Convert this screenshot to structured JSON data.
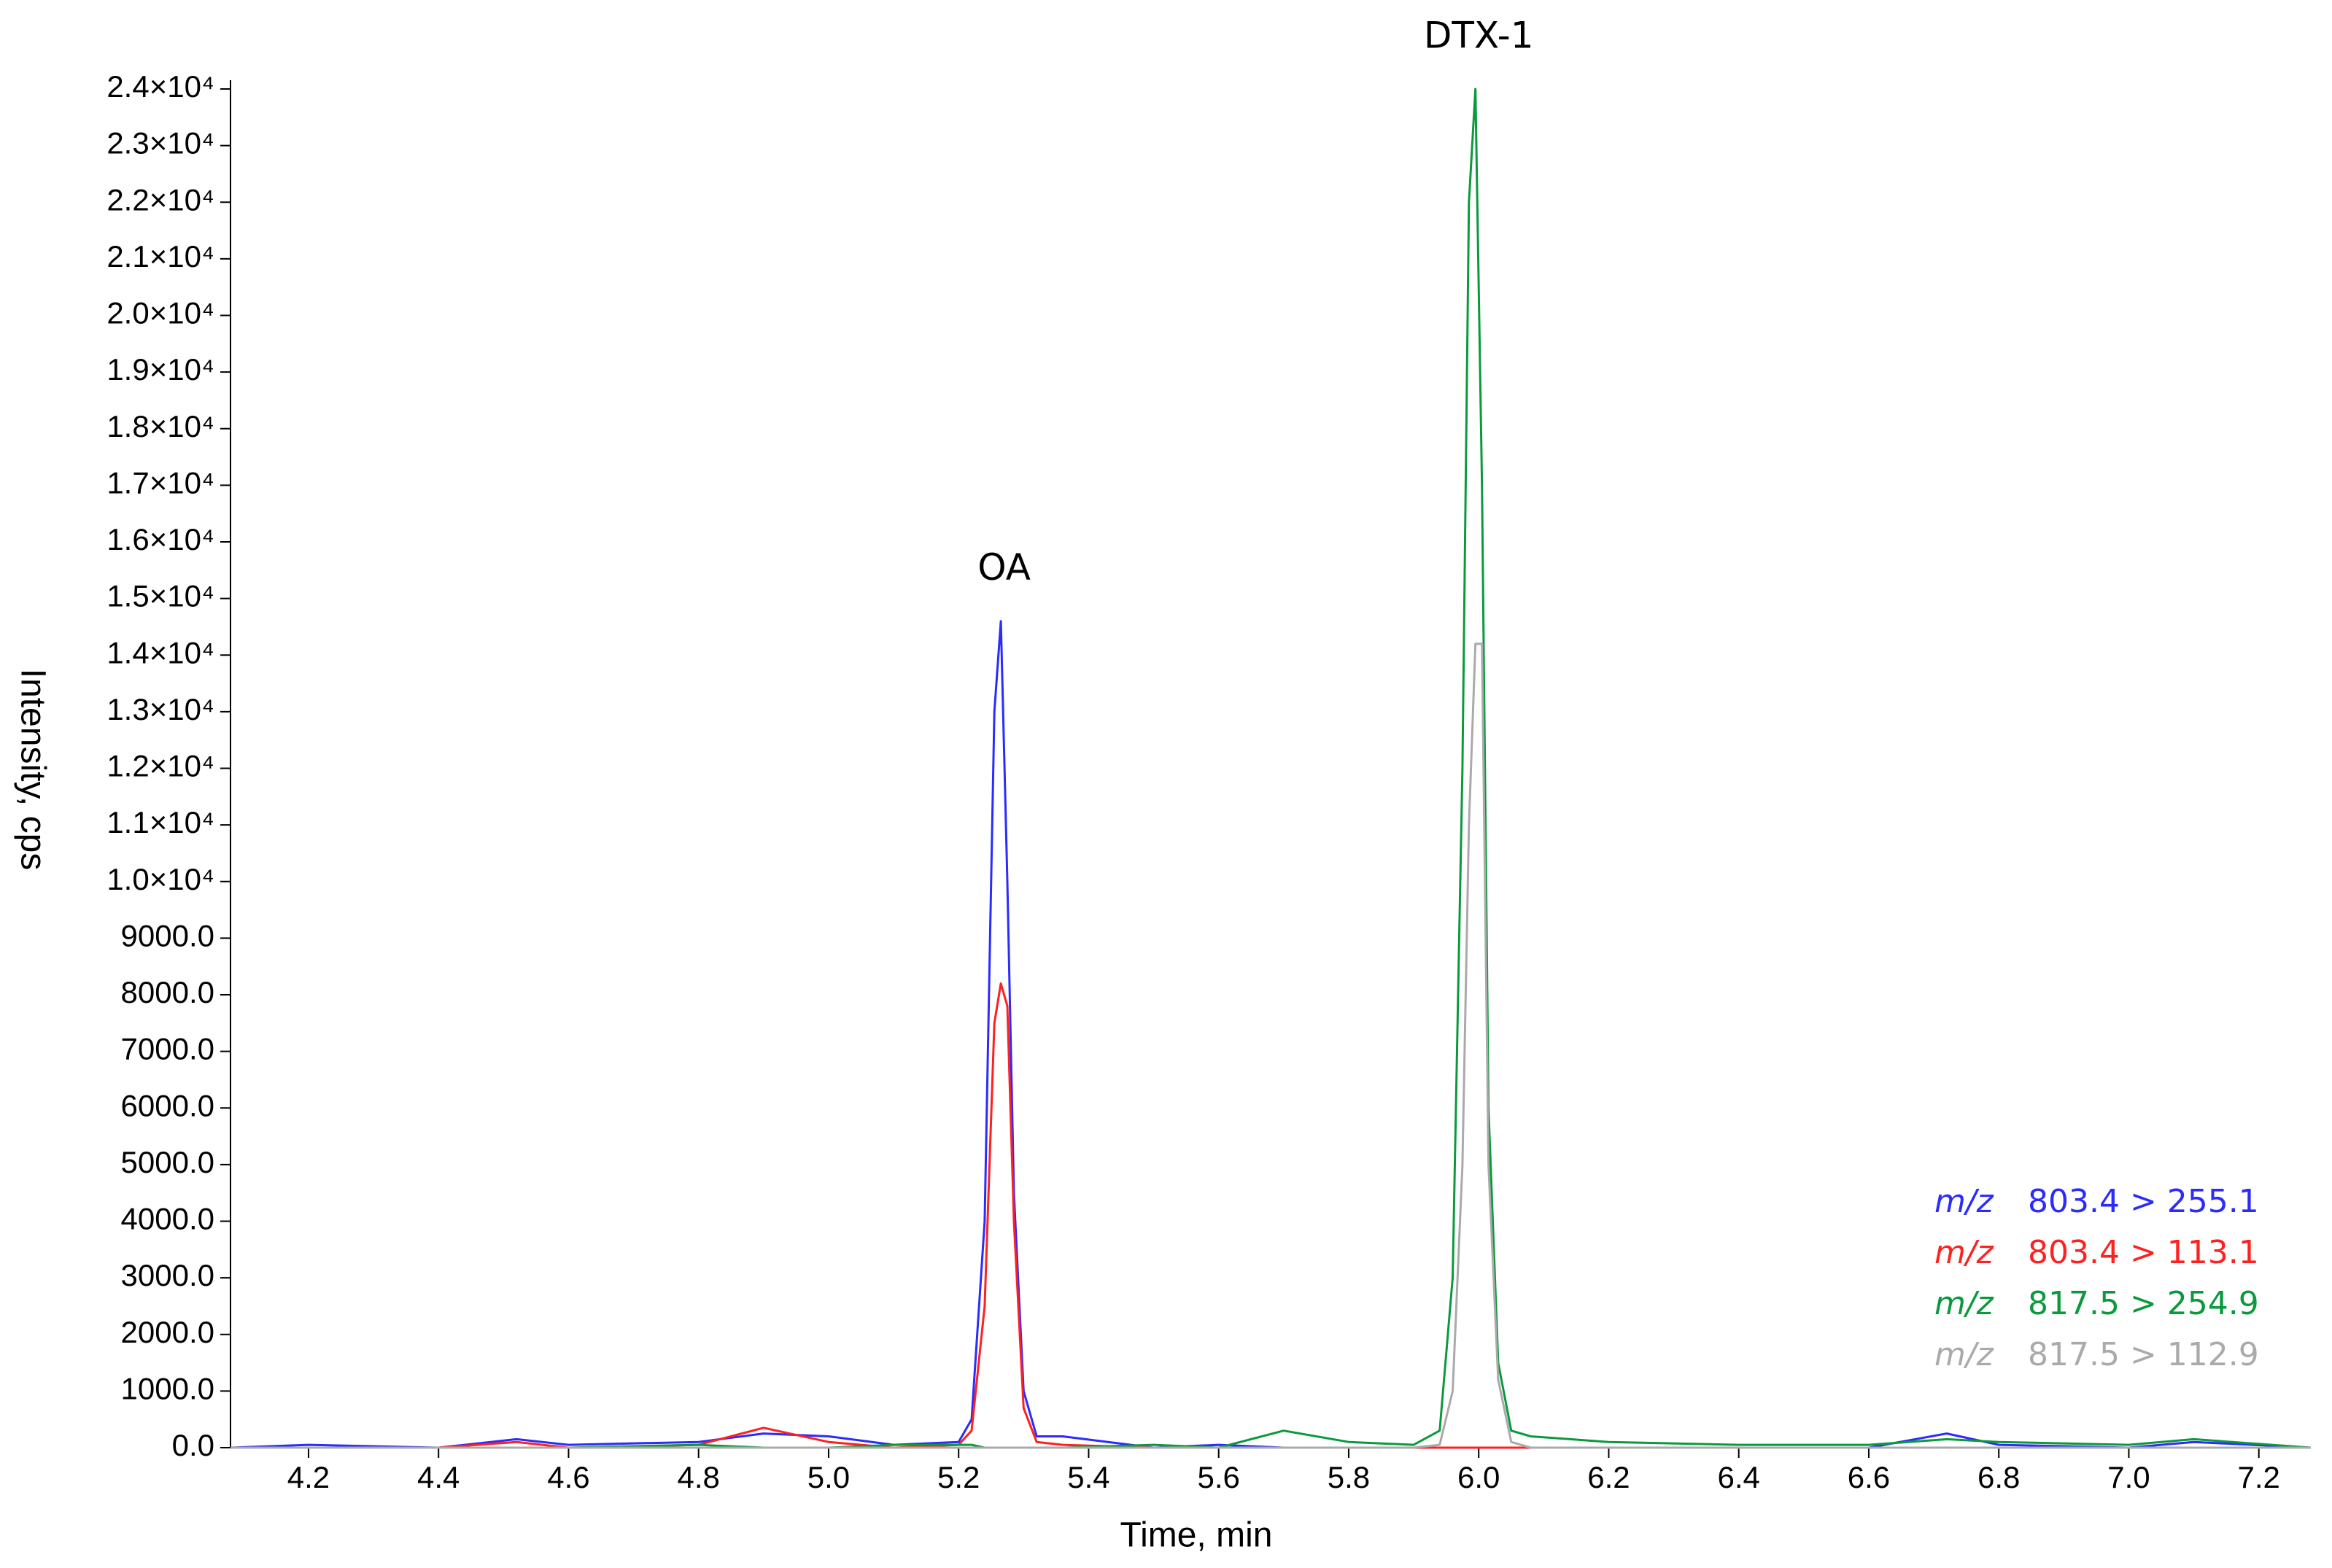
{
  "chart_data": {
    "type": "line",
    "x_label": "Time, min",
    "y_label": "Intensity, cps",
    "legend_prefix": "m/z",
    "legend": "lower right",
    "grid": false,
    "xlim": [
      4.08,
      7.28
    ],
    "ylim": [
      0,
      24000
    ],
    "xticks": [
      4.2,
      4.4,
      4.6,
      4.8,
      {
        "value": 5,
        "label": "5.0"
      },
      5.2,
      5.4,
      5.6,
      5.8,
      {
        "value": 6,
        "label": "6.0"
      },
      6.2,
      6.4,
      6.6,
      6.8,
      {
        "value": 7,
        "label": "7.0"
      },
      7.2
    ],
    "yticks": [
      {
        "value": 0,
        "label": "0.0"
      },
      {
        "value": 1000,
        "label": "1000.0"
      },
      {
        "value": 2000,
        "label": "2000.0"
      },
      {
        "value": 3000,
        "label": "3000.0"
      },
      {
        "value": 4000,
        "label": "4000.0"
      },
      {
        "value": 5000,
        "label": "5000.0"
      },
      {
        "value": 6000,
        "label": "6000.0"
      },
      {
        "value": 7000,
        "label": "7000.0"
      },
      {
        "value": 8000,
        "label": "8000.0"
      },
      {
        "value": 9000,
        "label": "9000.0"
      },
      {
        "value": 10000,
        "label": "1.0×10⁴"
      },
      {
        "value": 11000,
        "label": "1.1×10⁴"
      },
      {
        "value": 12000,
        "label": "1.2×10⁴"
      },
      {
        "value": 13000,
        "label": "1.3×10⁴"
      },
      {
        "value": 14000,
        "label": "1.4×10⁴"
      },
      {
        "value": 15000,
        "label": "1.5×10⁴"
      },
      {
        "value": 16000,
        "label": "1.6×10⁴"
      },
      {
        "value": 17000,
        "label": "1.7×10⁴"
      },
      {
        "value": 18000,
        "label": "1.8×10⁴"
      },
      {
        "value": 19000,
        "label": "1.9×10⁴"
      },
      {
        "value": 20000,
        "label": "2.0×10⁴"
      },
      {
        "value": 21000,
        "label": "2.1×10⁴"
      },
      {
        "value": 22000,
        "label": "2.2×10⁴"
      },
      {
        "value": 23000,
        "label": "2.3×10⁴"
      },
      {
        "value": 24000,
        "label": "2.4×10⁴"
      }
    ],
    "annotations": [
      {
        "text": "OA",
        "x": 5.27
      },
      {
        "text": "DTX-1",
        "x": 6.0
      }
    ],
    "x": [
      4.08,
      4.2,
      4.4,
      4.52,
      4.6,
      4.8,
      4.9,
      5.0,
      5.1,
      5.2,
      5.22,
      5.24,
      5.255,
      5.265,
      5.275,
      5.285,
      5.3,
      5.32,
      5.36,
      5.5,
      5.6,
      5.7,
      5.8,
      5.9,
      5.94,
      5.96,
      5.975,
      5.985,
      5.995,
      6.005,
      6.015,
      6.03,
      6.05,
      6.08,
      6.2,
      6.4,
      6.6,
      6.72,
      6.8,
      7.0,
      7.1,
      7.28
    ],
    "series": [
      {
        "name": "803.4 > 255.1",
        "color": "#2b2bff",
        "values": [
          0,
          50,
          0,
          150,
          50,
          100,
          250,
          200,
          50,
          100,
          500,
          4000,
          13000,
          14600,
          10000,
          4500,
          1000,
          200,
          200,
          0,
          50,
          0,
          0,
          0,
          0,
          0,
          0,
          0,
          0,
          0,
          0,
          0,
          0,
          0,
          0,
          0,
          0,
          250,
          50,
          0,
          100,
          0
        ]
      },
      {
        "name": "803.4 > 113.1",
        "color": "#ff2020",
        "values": [
          0,
          0,
          0,
          100,
          0,
          50,
          350,
          100,
          0,
          50,
          300,
          2500,
          7500,
          8200,
          7800,
          4000,
          700,
          100,
          50,
          0,
          0,
          0,
          0,
          0,
          0,
          0,
          0,
          0,
          0,
          0,
          0,
          0,
          0,
          0,
          0,
          0,
          0,
          0,
          0,
          0,
          0,
          0
        ]
      },
      {
        "name": "817.5 > 254.9",
        "color": "#0a9a3c",
        "values": [
          0,
          0,
          0,
          0,
          0,
          50,
          0,
          0,
          50,
          50,
          50,
          0,
          0,
          0,
          0,
          0,
          0,
          0,
          0,
          50,
          0,
          300,
          100,
          50,
          300,
          3000,
          12000,
          22000,
          24000,
          17000,
          6000,
          1500,
          300,
          200,
          100,
          50,
          50,
          150,
          100,
          50,
          150,
          0
        ]
      },
      {
        "name": "817.5 > 112.9",
        "color": "#aaaaaa",
        "values": [
          0,
          0,
          0,
          0,
          0,
          0,
          0,
          0,
          0,
          0,
          0,
          0,
          0,
          0,
          0,
          0,
          0,
          0,
          0,
          0,
          0,
          0,
          0,
          0,
          50,
          1000,
          5000,
          11000,
          14200,
          14200,
          5000,
          1200,
          100,
          0,
          0,
          0,
          0,
          0,
          0,
          0,
          0,
          0
        ]
      }
    ]
  }
}
